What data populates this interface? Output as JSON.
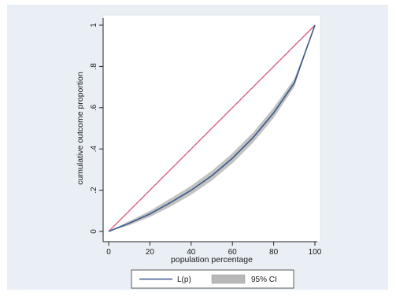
{
  "chart_data": {
    "type": "line",
    "xlabel": "population percentage",
    "ylabel": "cumulative outcome proportion",
    "xlim": [
      0,
      100
    ],
    "ylim": [
      0,
      1
    ],
    "x_ticks": [
      "0",
      "20",
      "40",
      "60",
      "80",
      "100"
    ],
    "y_ticks": [
      "0",
      ".2",
      ".4",
      ".6",
      ".8",
      "1"
    ],
    "grid": false,
    "legend_position": "bottom",
    "series": [
      {
        "name": "L(p)",
        "color": "#3a5a8c",
        "x": [
          0,
          10,
          20,
          30,
          40,
          50,
          60,
          70,
          80,
          90,
          100
        ],
        "y": [
          0,
          0.04,
          0.085,
          0.14,
          0.2,
          0.27,
          0.355,
          0.455,
          0.575,
          0.72,
          1.0
        ]
      },
      {
        "name": "95% CI",
        "color": "#b8b8b8",
        "x": [
          0,
          10,
          20,
          30,
          40,
          50,
          60,
          70,
          80,
          90,
          100
        ],
        "lower": [
          0,
          0.03,
          0.07,
          0.12,
          0.178,
          0.246,
          0.33,
          0.43,
          0.55,
          0.7,
          1.0
        ],
        "upper": [
          0,
          0.05,
          0.1,
          0.16,
          0.222,
          0.294,
          0.38,
          0.48,
          0.6,
          0.74,
          1.0
        ]
      },
      {
        "color": "#e0607e",
        "x": [
          0,
          100
        ],
        "y": [
          0,
          1
        ]
      }
    ]
  }
}
